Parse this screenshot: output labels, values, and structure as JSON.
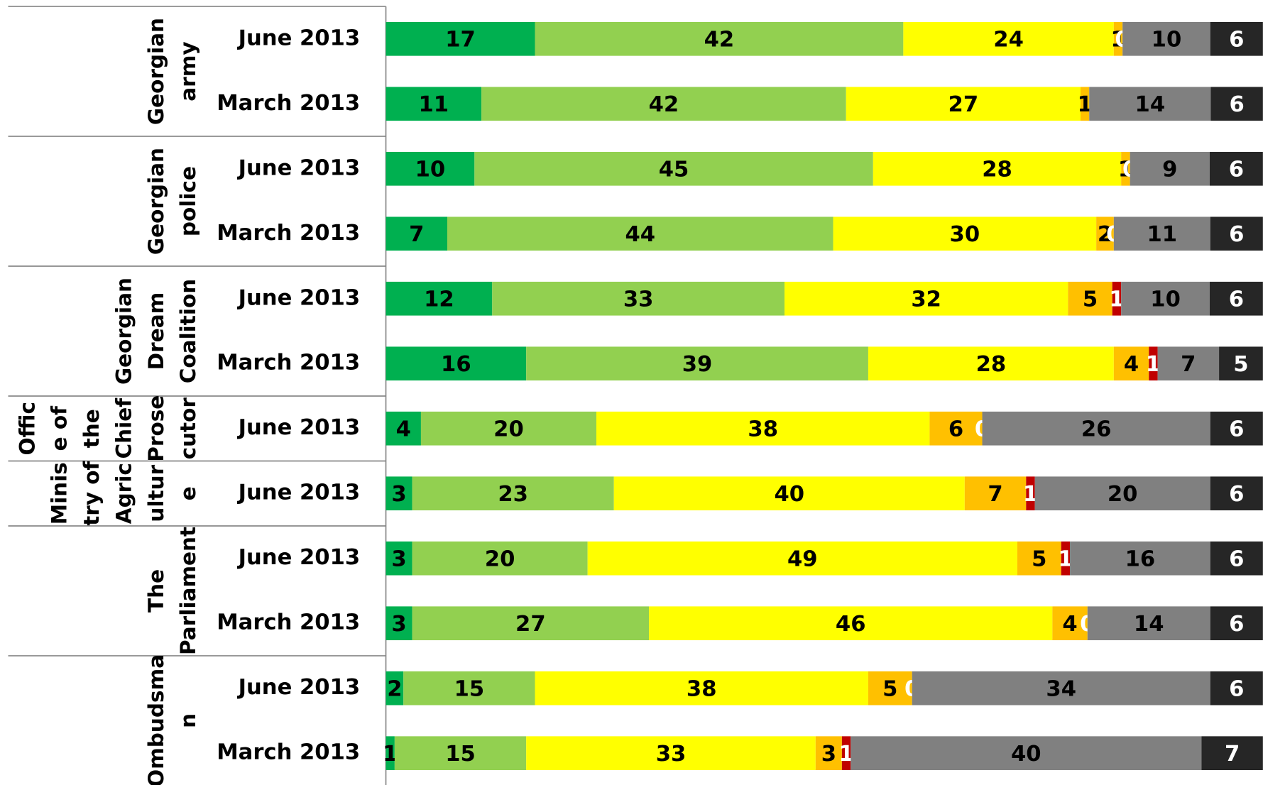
{
  "chart_data": {
    "type": "stacked_bar_percent",
    "orientation": "horizontal",
    "categories": [
      "June 2013",
      "March 2013",
      "June 2013",
      "March 2013",
      "June 2013",
      "March 2013",
      "June 2013",
      "June 2013",
      "June 2013",
      "March 2013",
      "June 2013",
      "March 2013"
    ],
    "groups": [
      {
        "lines": [
          "Georgian",
          "army"
        ],
        "rows": 2
      },
      {
        "lines": [
          "Georgian",
          "police"
        ],
        "rows": 2
      },
      {
        "lines": [
          "Georgian",
          "Dream",
          "Coalition"
        ],
        "rows": 2
      },
      {
        "lines": [
          "Offic",
          "e of",
          "the",
          "Chief",
          "Prose",
          "cutor"
        ],
        "rows": 1
      },
      {
        "lines": [
          "Minis",
          "try of",
          "Agric",
          "ultur",
          "e"
        ],
        "rows": 1
      },
      {
        "lines": [
          "The",
          "Parliament"
        ],
        "rows": 2
      },
      {
        "lines": [
          "Ombudsma",
          "n"
        ],
        "rows": 2
      }
    ],
    "series": [
      {
        "color": "#00b050",
        "label_color": "#000000",
        "values": [
          17,
          11,
          10,
          7,
          12,
          16,
          4,
          3,
          3,
          3,
          2,
          1
        ]
      },
      {
        "color": "#92d050",
        "label_color": "#000000",
        "values": [
          42,
          42,
          45,
          44,
          33,
          39,
          20,
          23,
          20,
          27,
          15,
          15
        ]
      },
      {
        "color": "#ffff00",
        "label_color": "#000000",
        "values": [
          24,
          27,
          28,
          30,
          32,
          28,
          38,
          40,
          49,
          46,
          38,
          33
        ]
      },
      {
        "color": "#ffc000",
        "label_color": "#000000",
        "values": [
          1,
          1,
          1,
          2,
          5,
          4,
          6,
          7,
          5,
          4,
          5,
          3
        ]
      },
      {
        "color": "#c00000",
        "label_color": "#ffffff",
        "values": [
          0,
          null,
          0,
          0,
          1,
          1,
          0,
          1,
          1,
          0,
          0,
          1
        ]
      },
      {
        "color": "#808080",
        "label_color": "#000000",
        "values": [
          10,
          14,
          9,
          11,
          10,
          7,
          26,
          20,
          16,
          14,
          34,
          40
        ]
      },
      {
        "color": "#262626",
        "label_color": "#ffffff",
        "values": [
          6,
          6,
          6,
          6,
          6,
          5,
          6,
          6,
          6,
          6,
          6,
          7
        ]
      }
    ]
  }
}
